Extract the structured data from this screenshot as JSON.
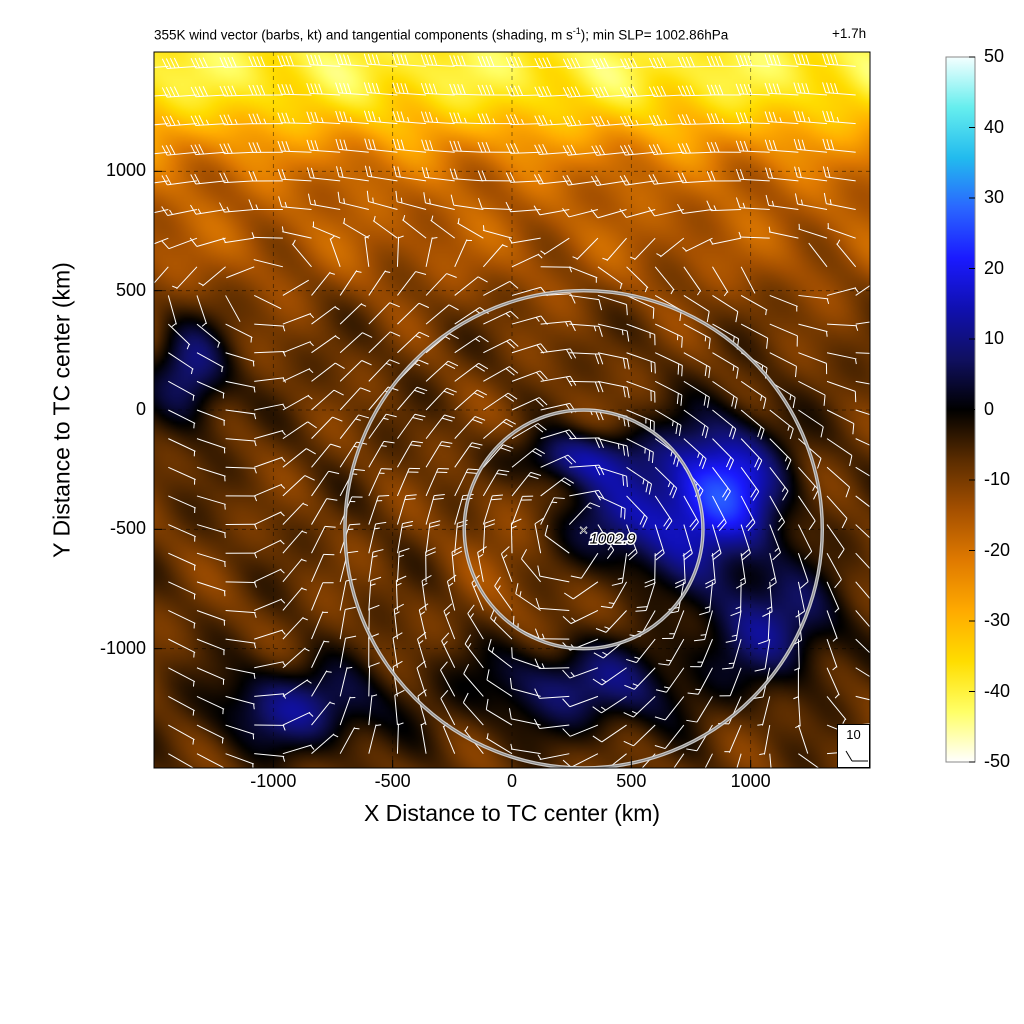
{
  "chart_data": {
    "type": "heatmap",
    "title_main": "355K wind vector (barbs, kt) and tangential components (shading, m s",
    "title_sup": "-1",
    "title_end": "); min SLP= 1002.86hPa",
    "time_label": "+1.7h",
    "xlabel": "X Distance to TC center (km)",
    "ylabel": "Y Distance to TC center (km)",
    "xlim": [
      -1500,
      1500
    ],
    "ylim": [
      -1500,
      1500
    ],
    "x_ticks": [
      -1000,
      -500,
      0,
      500,
      1000
    ],
    "y_ticks": [
      -1000,
      -500,
      0,
      500,
      1000
    ],
    "x_tick_labels": [
      "-1000",
      "-500",
      "0",
      "500",
      "1000"
    ],
    "y_tick_labels": [
      "-1000",
      "-500",
      "0",
      "500",
      "1000"
    ],
    "grid": true,
    "colorbar": {
      "min": -50,
      "max": 50,
      "ticks": [
        50,
        40,
        30,
        20,
        10,
        0,
        -10,
        -20,
        -30,
        -40,
        -50
      ],
      "tick_labels": [
        "50",
        "40",
        "30",
        "20",
        "10",
        "0",
        "-10",
        "-20",
        "-30",
        "-40",
        "-50"
      ],
      "colors": [
        "#ffffff",
        "#ffff66",
        "#ffdd00",
        "#ffaa00",
        "#e07a00",
        "#a55000",
        "#5a2c00",
        "#000000",
        "#101060",
        "#1010b0",
        "#1a1aff",
        "#2a66ff",
        "#22bbee",
        "#66eeee",
        "#f4ffff"
      ]
    },
    "center_marker": {
      "x": 300,
      "y": -500,
      "label": "1002.9"
    },
    "rings": [
      {
        "center_x": 300,
        "center_y": -500,
        "radius_km": 500
      },
      {
        "center_x": 300,
        "center_y": -500,
        "radius_km": 1000
      }
    ],
    "reference_barb_label": "10",
    "jet_max_kt": 40,
    "positive_regions": [
      {
        "x": 600,
        "y": -450,
        "rx": 500,
        "ry": 400,
        "strength": 14
      },
      {
        "x": 900,
        "y": -300,
        "rx": 300,
        "ry": 350,
        "strength": 12
      },
      {
        "x": -1350,
        "y": 150,
        "rx": 200,
        "ry": 280,
        "strength": 8
      },
      {
        "x": -900,
        "y": -1250,
        "rx": 450,
        "ry": 230,
        "strength": 8
      },
      {
        "x": 300,
        "y": -1150,
        "rx": 600,
        "ry": 250,
        "strength": 7
      },
      {
        "x": 1100,
        "y": -900,
        "rx": 350,
        "ry": 300,
        "strength": 7
      },
      {
        "x": 250,
        "y": -200,
        "rx": 350,
        "ry": 150,
        "strength": 8
      }
    ]
  }
}
